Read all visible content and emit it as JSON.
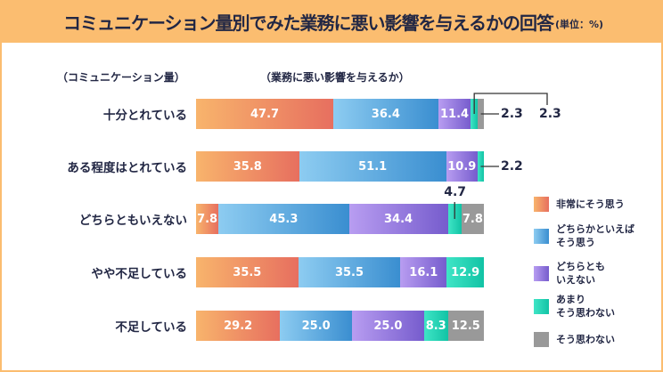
{
  "title": "コミュニケーション量別でみた業務に悪い影響を与えるかの回答",
  "unit": "(単位：%)",
  "chart_data": {
    "type": "bar",
    "stacked": true,
    "orientation": "horizontal",
    "row_header": "（コミュニケーション量）",
    "value_header": "（業務に悪い影響を与えるか）",
    "categories": [
      "十分とれている",
      "ある程度はとれている",
      "どちらともいえない",
      "やや不足している",
      "不足している"
    ],
    "series": [
      {
        "name": "非常にそう思う",
        "values": [
          47.7,
          35.8,
          7.8,
          35.5,
          29.2
        ],
        "color": "#ec8a63"
      },
      {
        "name": "どちらかといえばそう思う",
        "values": [
          36.4,
          51.1,
          45.3,
          35.5,
          25.0
        ],
        "color": "#4a9ad6"
      },
      {
        "name": "どちらともいえない",
        "values": [
          11.4,
          10.9,
          34.4,
          16.1,
          25.0
        ],
        "color": "#8a6fd8"
      },
      {
        "name": "あまりそう思わない",
        "values": [
          2.3,
          2.2,
          4.7,
          12.9,
          8.3
        ],
        "color": "#1fd2b2"
      },
      {
        "name": "そう思わない",
        "values": [
          2.3,
          0,
          7.8,
          0,
          12.5
        ],
        "color": "#9a9a9a"
      }
    ],
    "legend_position": "right",
    "xlim": [
      0,
      100
    ]
  }
}
